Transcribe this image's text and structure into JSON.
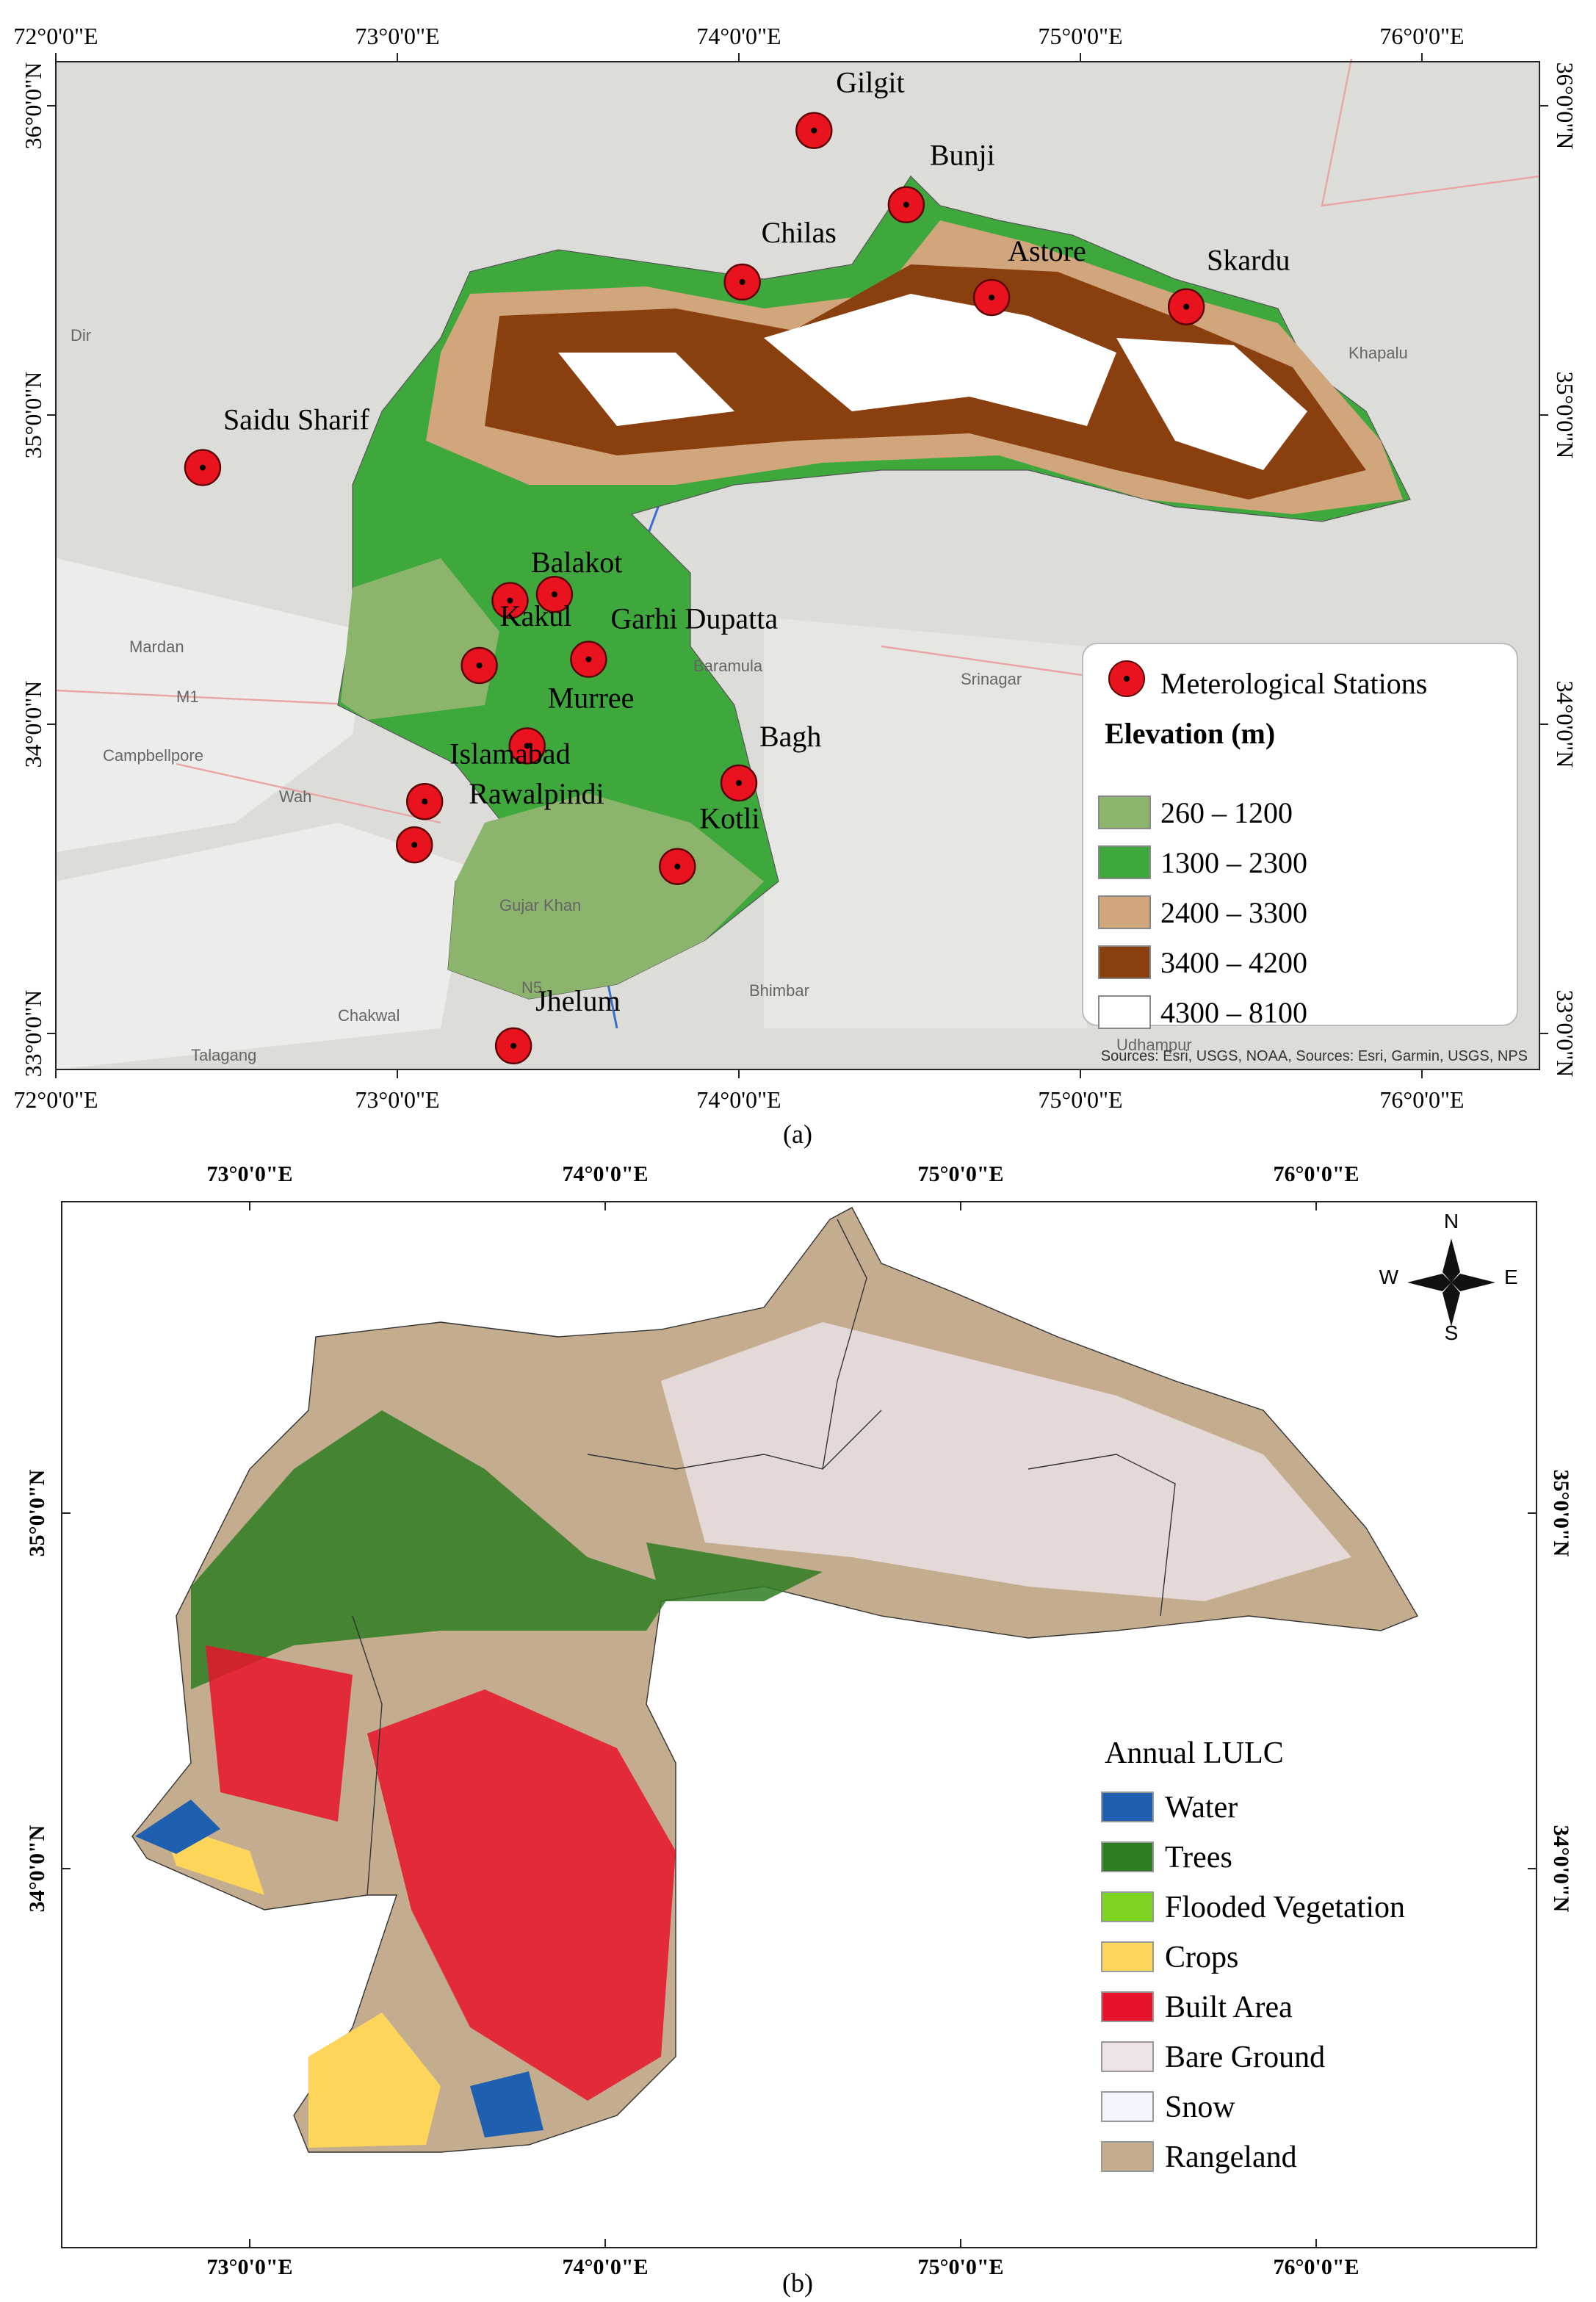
{
  "panel_a": {
    "lon_ticks": [
      {
        "value": 72,
        "label": "72°0'0\"E"
      },
      {
        "value": 73,
        "label": "73°0'0\"E"
      },
      {
        "value": 74,
        "label": "74°0'0\"E"
      },
      {
        "value": 75,
        "label": "75°0'0\"E"
      },
      {
        "value": 76,
        "label": "76°0'0\"E"
      }
    ],
    "lat_ticks": [
      {
        "value": 36,
        "label": "36°0'0\"N"
      },
      {
        "value": 35,
        "label": "35°0'0\"N"
      },
      {
        "value": 34,
        "label": "34°0'0\"N"
      },
      {
        "value": 33,
        "label": "33°0'0\"N"
      }
    ],
    "stations": [
      {
        "name": "Gilgit",
        "lon": 74.22,
        "lat": 35.92
      },
      {
        "name": "Bunji",
        "lon": 74.49,
        "lat": 35.68
      },
      {
        "name": "Chilas",
        "lon": 74.01,
        "lat": 35.43
      },
      {
        "name": "Astore",
        "lon": 74.74,
        "lat": 35.38
      },
      {
        "name": "Skardu",
        "lon": 75.31,
        "lat": 35.35
      },
      {
        "name": "Saidu Sharif",
        "lon": 72.43,
        "lat": 34.83
      },
      {
        "name": "Balakot",
        "lon": 73.46,
        "lat": 34.42
      },
      {
        "name": null,
        "lon": 73.33,
        "lat": 34.4
      },
      {
        "name": "Kakul",
        "lon": 73.24,
        "lat": 34.19
      },
      {
        "name": "Garhi Dupatta",
        "lon": 73.56,
        "lat": 34.21
      },
      {
        "name": "Murree",
        "lon": 73.38,
        "lat": 33.93
      },
      {
        "name": "Islamabad",
        "lon": 73.08,
        "lat": 33.75
      },
      {
        "name": "Rawalpindi",
        "lon": 73.05,
        "lat": 33.61
      },
      {
        "name": "Bagh",
        "lon": 74.0,
        "lat": 33.81
      },
      {
        "name": "Kotli",
        "lon": 73.82,
        "lat": 33.54
      },
      {
        "name": "Jhelum",
        "lon": 73.34,
        "lat": 32.96
      }
    ],
    "basemap_labels": [
      "Mardan",
      "Campbellpore",
      "Wah",
      "Talagang",
      "Chakwal",
      "Bhimbar",
      "Udhampur",
      "Srinagar",
      "Baramula",
      "Khapalu",
      "Dir",
      "Gujar Khan",
      "M1",
      "N5"
    ],
    "legend": {
      "stations_label": "Meterological Stations",
      "elevation_title": "Elevation (m)",
      "classes": [
        {
          "label": "260 – 1200",
          "color": "#8cb46c"
        },
        {
          "label": "1300 – 2300",
          "color": "#3fa83d"
        },
        {
          "label": "2400 – 3300",
          "color": "#d2a67c"
        },
        {
          "label": "3400 – 4200",
          "color": "#8a400e"
        },
        {
          "label": "4300 – 8100",
          "color": "#ffffff"
        }
      ]
    },
    "sources": "Sources: Esri, USGS, NOAA, Sources: Esri, Garmin, USGS, NPS",
    "caption": "(a)"
  },
  "panel_b": {
    "lon_ticks": [
      {
        "value": 73,
        "label": "73°0'0\"E"
      },
      {
        "value": 74,
        "label": "74°0'0\"E"
      },
      {
        "value": 75,
        "label": "75°0'0\"E"
      },
      {
        "value": 76,
        "label": "76°0'0\"E"
      }
    ],
    "lat_ticks": [
      {
        "value": 35,
        "label": "35°0'0\"N"
      },
      {
        "value": 34,
        "label": "34°0'0\"N"
      }
    ],
    "compass": {
      "n": "N",
      "e": "E",
      "s": "S",
      "w": "W"
    },
    "legend": {
      "title": "Annual LULC",
      "classes": [
        {
          "label": "Water",
          "color": "#1f5fb0"
        },
        {
          "label": "Trees",
          "color": "#2e7d22"
        },
        {
          "label": "Flooded Vegetation",
          "color": "#7ed321"
        },
        {
          "label": "Crops",
          "color": "#fcd55a"
        },
        {
          "label": "Built Area",
          "color": "#e8132a"
        },
        {
          "label": "Bare Ground",
          "color": "#ede3e8"
        },
        {
          "label": "Snow",
          "color": "#f1f6fc"
        },
        {
          "label": "Rangeland",
          "color": "#c4ad8f"
        }
      ]
    },
    "caption": "(b)"
  }
}
